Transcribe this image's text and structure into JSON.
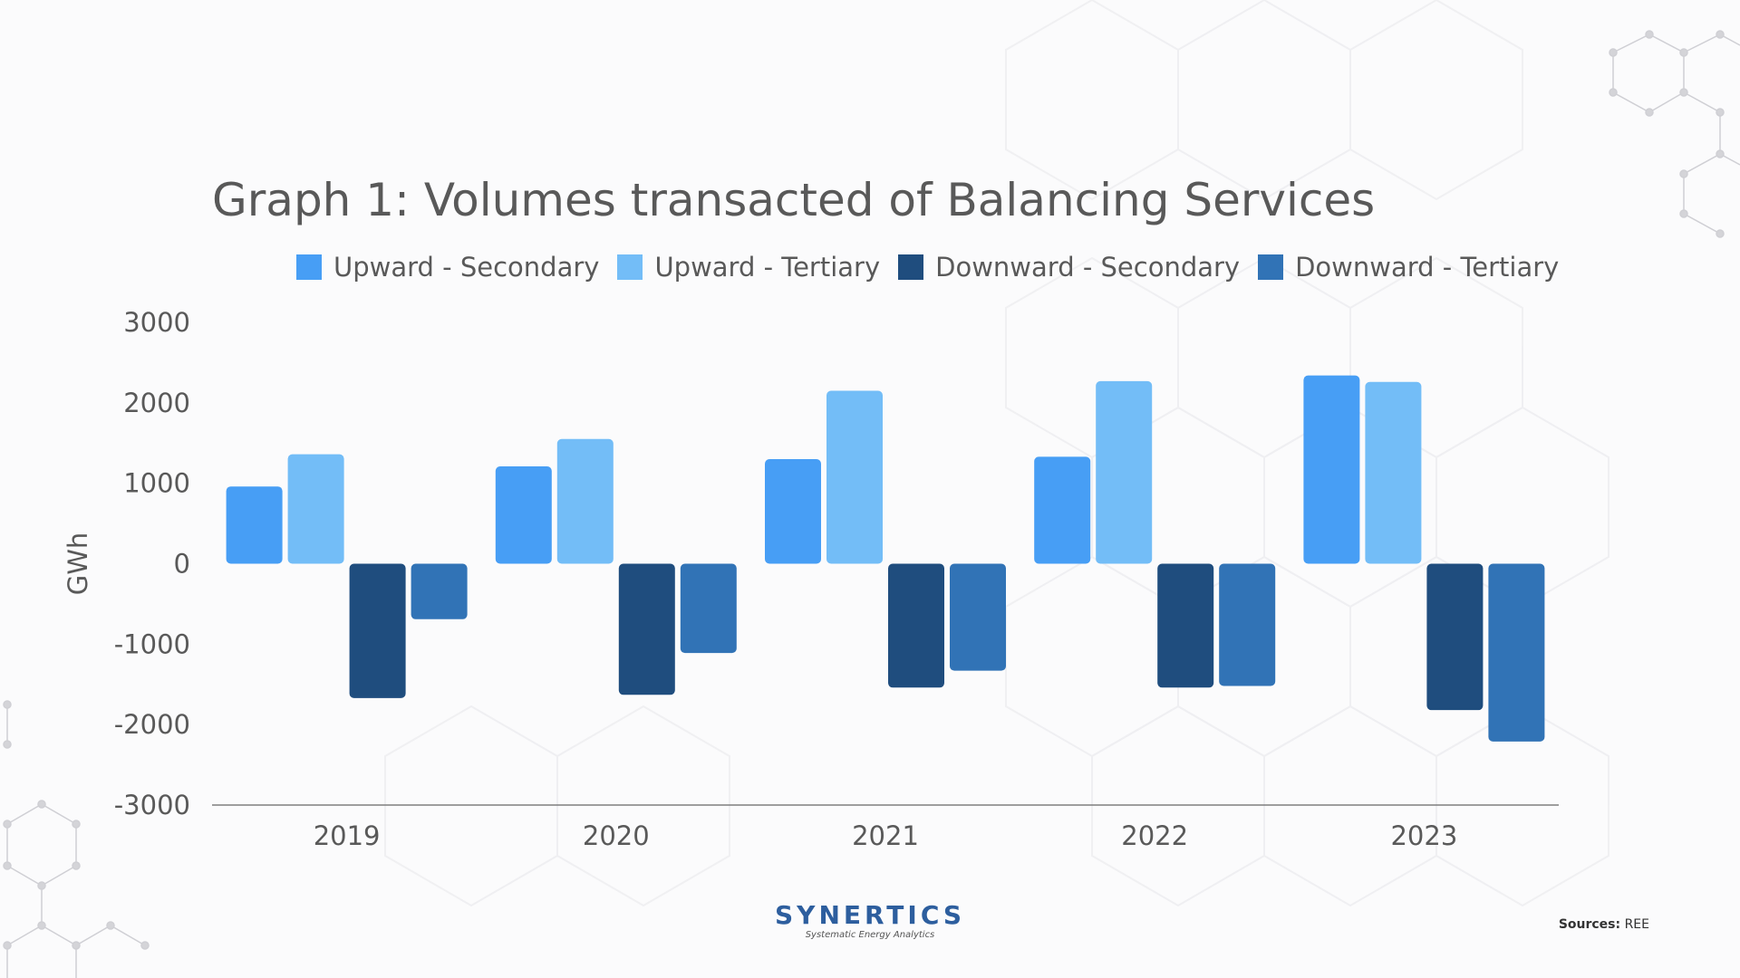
{
  "colors": {
    "upward_secondary": "#479ef5",
    "upward_tertiary": "#73bdf7",
    "downward_secondary": "#1f4d7e",
    "downward_tertiary": "#3173b6",
    "text": "#595959",
    "axis_line": "#7f7f7f",
    "brand": "#2d5e9e"
  },
  "chart_data": {
    "type": "bar",
    "title": "Graph 1: Volumes transacted of Balancing Services",
    "xlabel": "",
    "ylabel": "GWh",
    "ylim": [
      -3000,
      3000
    ],
    "yticks": [
      3000,
      2000,
      1000,
      0,
      -1000,
      -2000,
      -3000
    ],
    "grid": false,
    "legend_position": "top",
    "categories": [
      "2019",
      "2020",
      "2021",
      "2022",
      "2023"
    ],
    "series": [
      {
        "name": "Upward - Secondary",
        "color": "#479ef5",
        "values": [
          960,
          1210,
          1300,
          1330,
          2340
        ]
      },
      {
        "name": "Upward - Tertiary",
        "color": "#73bdf7",
        "values": [
          1360,
          1550,
          2150,
          2270,
          2260
        ]
      },
      {
        "name": "Downward - Secondary",
        "color": "#1f4d7e",
        "values": [
          -1670,
          -1630,
          -1540,
          -1540,
          -1820
        ]
      },
      {
        "name": "Downward - Tertiary",
        "color": "#3173b6",
        "values": [
          -690,
          -1110,
          -1330,
          -1520,
          -2210
        ]
      }
    ]
  },
  "footer": {
    "logo_text": "SYNERTICS",
    "logo_tagline": "Systematic Energy Analytics",
    "sources_label": "Sources:",
    "sources_value": "REE"
  },
  "decoration": {
    "background_pattern": "hexagon-pattern",
    "molecule_icons": [
      "molecule-top-right-icon",
      "molecule-bottom-left-icon"
    ]
  }
}
